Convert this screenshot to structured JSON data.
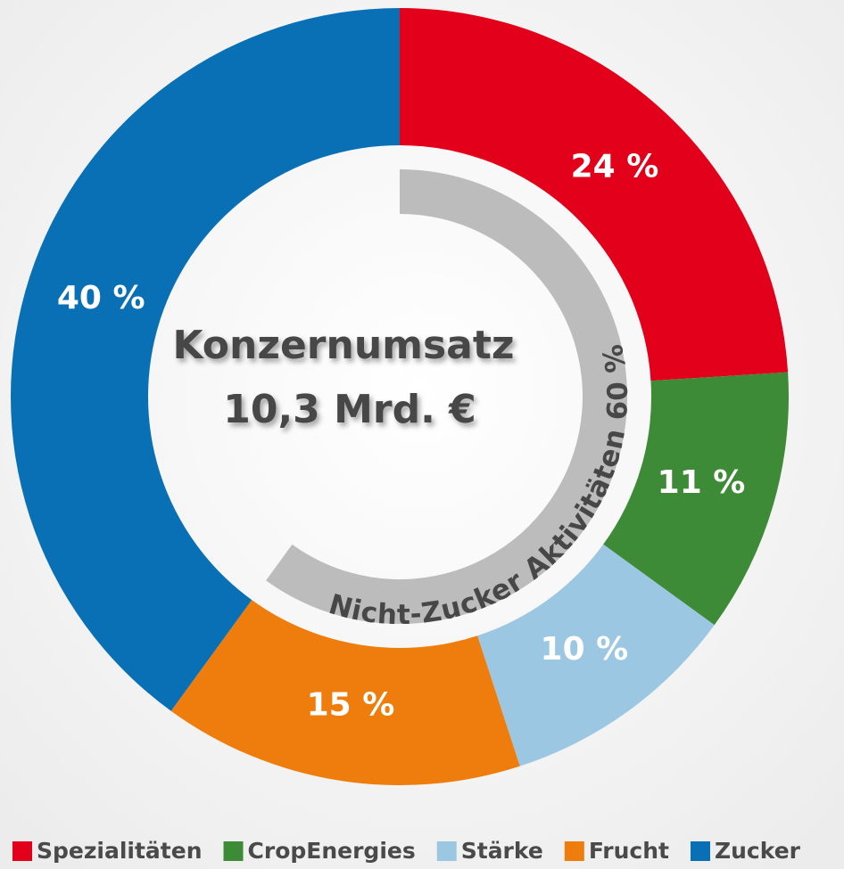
{
  "chart_data": {
    "type": "donut",
    "categories": [
      "Spezialitäten",
      "CropEnergies",
      "Stärke",
      "Frucht",
      "Zucker"
    ],
    "values": [
      24,
      11,
      10,
      15,
      40
    ],
    "value_labels": [
      "24 %",
      "11 %",
      "10 %",
      "15 %",
      "40 %"
    ],
    "colors": [
      "#e2001a",
      "#3d8b37",
      "#9cc7e3",
      "#ee7d0d",
      "#0a70b6"
    ],
    "center_title": "Konzernumsatz",
    "center_subtitle": "10,3 Mrd. €",
    "annotation": "Nicht-Zucker Aktivitäten 60 %",
    "legend": "bottom"
  }
}
